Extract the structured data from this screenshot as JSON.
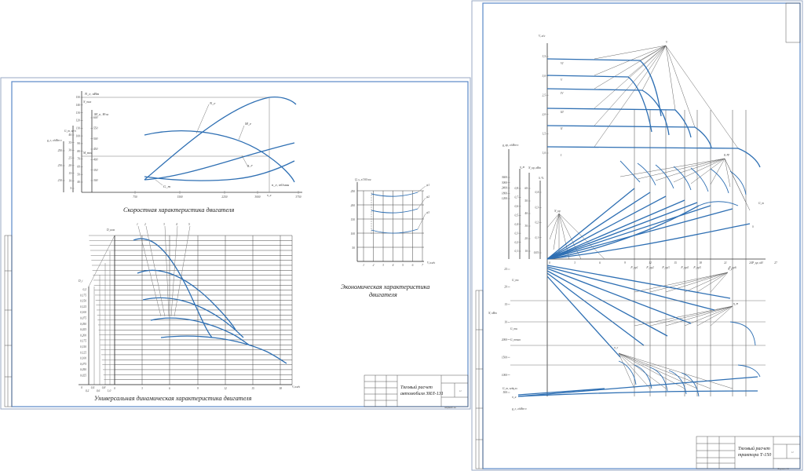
{
  "sheet_left": {
    "speed_chart": {
      "caption": "Скоростная характеристика двигателя",
      "y_axis_labels": [
        "N_e, кВт",
        "M_e, Н·м",
        "g_e, г/кВт·ч",
        "G_т, кг/ч"
      ],
      "x_axis_label": "n_e, об/мин",
      "x_ticks": [
        "750",
        "1500",
        "2250",
        "3000",
        "3750"
      ],
      "x_marker": "n_н",
      "ne_ticks": [
        "150",
        "140",
        "130",
        "120",
        "110",
        "100",
        "90",
        "80",
        "70",
        "60",
        "50",
        "40"
      ],
      "me_ticks": [
        "600",
        "550",
        "500",
        "450",
        "400",
        "350",
        "300"
      ],
      "ge_ticks": [
        "250",
        "230",
        "210"
      ],
      "gt_ticks": [
        "40",
        "35",
        "30",
        "25",
        "20",
        "15",
        "10",
        "5"
      ],
      "curve_labels": [
        "N_e",
        "M_e",
        "g_e",
        "G_т"
      ],
      "level_labels": [
        "N_max",
        "M_max"
      ]
    },
    "dynamic_chart": {
      "caption": "Универсальная динамическая характеристика двигателя",
      "y_axis_label": "D_ном",
      "y2_axis_label": "D_i",
      "x_axis_label": "V, км/ч",
      "x_ticks": [
        "0",
        "3",
        "6",
        "9",
        "12",
        "15",
        "18"
      ],
      "left_ticks": [
        "0",
        "0,2",
        "0,4",
        "0,6",
        "0,8",
        "1,0"
      ],
      "d_ticks": [
        "0,2",
        "0,175",
        "0,150",
        "0,125",
        "0,100",
        "0,075",
        "0,050",
        "0,025",
        "0,200",
        "0,175",
        "0,150",
        "0,125",
        "0,100",
        "0,075",
        "0,050",
        "0,025"
      ],
      "gear_labels": [
        "1",
        "2",
        "3",
        "4",
        "5"
      ]
    },
    "economy_chart": {
      "caption": "Экономическая характеристика двигателя",
      "y_axis_label": "Q_s, л/100 км",
      "y_ticks": [
        "250",
        "200",
        "150",
        "100",
        "50"
      ],
      "x_axis_label": "V, км/ч",
      "x_ticks": [
        "1",
        "2",
        "3",
        "4",
        "5",
        "6",
        "7"
      ],
      "curve_labels": [
        "ψ1",
        "ψ2",
        "ψ3"
      ]
    },
    "title_block": {
      "title": "Тяговый расчет автомобиля ЗИЛ-131",
      "sheet_no": "11",
      "small_text": "Формат А2"
    }
  },
  "sheet_right": {
    "chart": {
      "v_axis_label": "V, м/с",
      "v_ticks": [
        "3,5",
        "3,0",
        "2,5",
        "2,0",
        "1,5",
        "1,0"
      ],
      "gear_labels": [
        "VI",
        "V",
        "IV",
        "III",
        "II",
        "I"
      ],
      "v_pole": "V",
      "gkr_axis_label": "g_кр, г/кВт·ч",
      "gkr_ticks": [
        "3600",
        "3000",
        "2400",
        "1800",
        "1200"
      ],
      "dh_axis_label": "δ, %",
      "nkr_axis_label": "N_кр, кВт",
      "eta_axis_label": "η_т",
      "eta_ticks": [
        "0,8",
        "0,7",
        "0,6",
        "0,5",
        "0,4",
        "0,3",
        "0,2",
        "0,1"
      ],
      "nkr_ticks": [
        "60",
        "50",
        "40",
        "30",
        "20",
        "10"
      ],
      "delta_ticks": [
        "0,4",
        "0,3",
        "0,2",
        "0,1",
        "0,05"
      ],
      "pkr_axis_label": "P_кр, кН",
      "pkr_labels": [
        "P_кр1",
        "P_кр2",
        "P_кр3",
        "P_кр4",
        "P_кр5",
        "P_кр6"
      ],
      "pkr_nums": [
        "0",
        "3",
        "6",
        "9",
        "12",
        "15",
        "18",
        "21",
        "24",
        "27"
      ],
      "pole_labels": [
        "N_кр",
        "g_кр",
        "δ",
        "G_т",
        "N_e",
        "n_e",
        "η_т",
        "δ"
      ],
      "lower_labels": [
        "N, кВт",
        "G_т, кг/ч",
        "n_e, об/мин",
        "g_e, г/кВт·ч",
        "G_тх",
        "G_тн",
        "n_хх",
        "n_н",
        "G_тmax"
      ],
      "lower_ticks": [
        "25",
        "20",
        "15",
        "10",
        "2000",
        "1500",
        "1000",
        "500"
      ],
      "misc_ticks": [
        "35",
        "30",
        "25",
        "20",
        "15",
        "10",
        "5"
      ]
    },
    "title_block": {
      "title": "Тяговый расчет трактора Т-150",
      "sheet_no": "11",
      "small_text": "Формат А1"
    }
  },
  "colors": {
    "curve": "#2e6fb3",
    "frame": "#5b88c8",
    "line": "#444444"
  }
}
